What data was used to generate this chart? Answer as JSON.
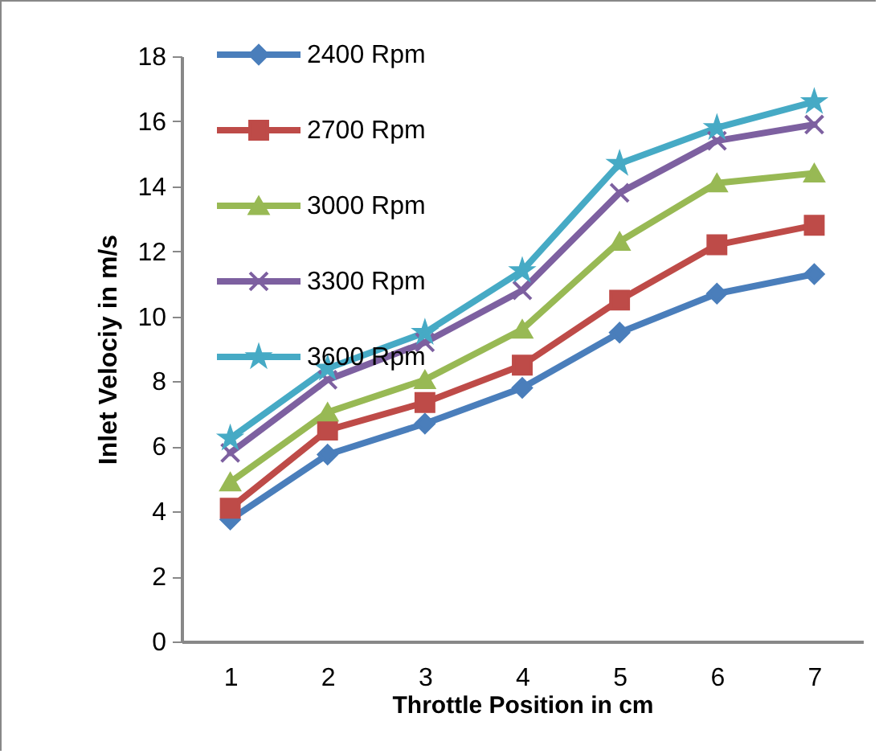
{
  "chart_data": {
    "type": "line",
    "xlabel": "Throttle Position in cm",
    "ylabel": "Inlet Velociy in m/s",
    "categories": [
      "1",
      "2",
      "3",
      "4",
      "5",
      "6",
      "7"
    ],
    "ylim": [
      0,
      18
    ],
    "yticks": [
      0,
      2,
      4,
      6,
      8,
      10,
      12,
      14,
      16,
      18
    ],
    "grid": false,
    "legend": "top left",
    "line_style": "solid",
    "series": [
      {
        "name": "2400 Rpm",
        "color": "#4a7ebb",
        "marker": "diamond",
        "values": [
          3.75,
          5.75,
          6.7,
          7.8,
          9.5,
          10.7,
          11.3
        ]
      },
      {
        "name": "2700 Rpm",
        "color": "#be4b48",
        "marker": "square",
        "values": [
          4.1,
          6.5,
          7.35,
          8.5,
          10.5,
          12.2,
          12.8
        ]
      },
      {
        "name": "3000 Rpm",
        "color": "#98b954",
        "marker": "triangle",
        "values": [
          4.9,
          7.05,
          8.05,
          9.6,
          12.3,
          14.1,
          14.4
        ]
      },
      {
        "name": "3300 Rpm",
        "color": "#7d60a0",
        "marker": "cross",
        "values": [
          5.8,
          8.05,
          9.2,
          10.8,
          13.8,
          15.4,
          15.9
        ]
      },
      {
        "name": "3600 Rpm",
        "color": "#46aac5",
        "marker": "star",
        "values": [
          6.25,
          8.4,
          9.5,
          11.4,
          14.7,
          15.8,
          16.6
        ]
      }
    ]
  }
}
